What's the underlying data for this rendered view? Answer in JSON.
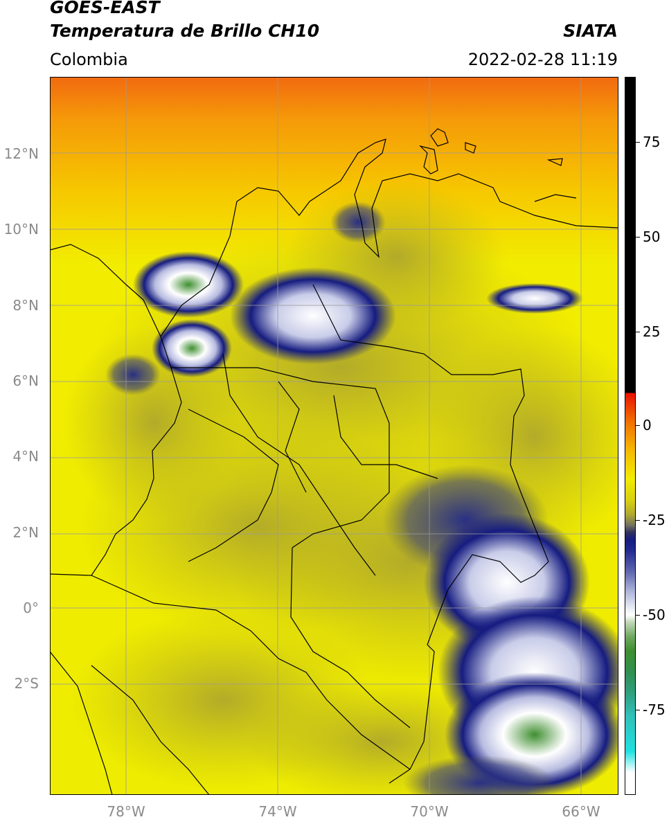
{
  "header": {
    "title_line1": "GOES-EAST",
    "title_line2": "Temperatura de Brillo CH10",
    "organization": "SIATA",
    "region": "Colombia",
    "datetime": "2022-02-28 11:19"
  },
  "map": {
    "lon_range": [
      -80,
      -65
    ],
    "lat_range": [
      -4.8,
      14
    ],
    "lat_ticks": [
      {
        "value": 12,
        "label": "12°N"
      },
      {
        "value": 10,
        "label": "10°N"
      },
      {
        "value": 8,
        "label": "8°N"
      },
      {
        "value": 6,
        "label": "6°N"
      },
      {
        "value": 4,
        "label": "4°N"
      },
      {
        "value": 2,
        "label": "2°N"
      },
      {
        "value": 0,
        "label": "0°"
      },
      {
        "value": -2,
        "label": "2°S"
      }
    ],
    "lon_ticks": [
      {
        "value": -78,
        "label": "78°W"
      },
      {
        "value": -74,
        "label": "74°W"
      },
      {
        "value": -70,
        "label": "70°W"
      },
      {
        "value": -66,
        "label": "66°W"
      }
    ],
    "colors": {
      "warm_orange": "#f06a10",
      "yellow": "#f2f000",
      "olive": "#b8b020",
      "deep_blue": "#161c80",
      "cold_white": "#ffffff",
      "cold_green": "#3f8f30"
    }
  },
  "colorbar": {
    "range": [
      -95,
      90
    ],
    "ticks": [
      {
        "value": 75,
        "label": "75"
      },
      {
        "value": 50,
        "label": "50"
      },
      {
        "value": 25,
        "label": "25"
      },
      {
        "value": 0,
        "label": "0"
      },
      {
        "value": -25,
        "label": "-25"
      },
      {
        "value": -50,
        "label": "-50"
      },
      {
        "value": -75,
        "label": "-75"
      }
    ]
  }
}
